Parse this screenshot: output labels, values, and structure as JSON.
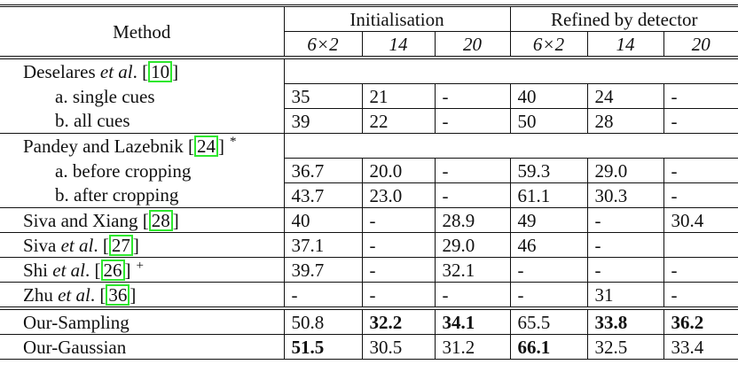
{
  "header": {
    "method": "Method",
    "groups": [
      "Initialisation",
      "Refined by detector"
    ],
    "subcols": [
      "6×2",
      "14",
      "20",
      "6×2",
      "14",
      "20"
    ]
  },
  "sections": [
    {
      "groups": [
        {
          "method": {
            "pre": "Deselares ",
            "italic": "et al",
            "post": ".",
            "cite": "10",
            "mark": ""
          },
          "rows": [
            {
              "label": "a. single cues",
              "values": [
                "35",
                "21",
                "-",
                "40",
                "24",
                "-"
              ],
              "bold": []
            },
            {
              "label": "b. all cues",
              "values": [
                "39",
                "22",
                "-",
                "50",
                "28",
                "-"
              ],
              "bold": []
            }
          ]
        },
        {
          "method": {
            "pre": "Pandey and Lazebnik ",
            "italic": "",
            "post": "",
            "cite": "24",
            "mark": "*"
          },
          "rows": [
            {
              "label": "a. before cropping",
              "values": [
                "36.7",
                "20.0",
                "-",
                "59.3",
                "29.0",
                "-"
              ],
              "bold": []
            },
            {
              "label": "b. after cropping",
              "values": [
                "43.7",
                "23.0",
                "-",
                "61.1",
                "30.3",
                "-"
              ],
              "bold": []
            }
          ]
        },
        {
          "method": {
            "pre": "Siva and Xiang ",
            "italic": "",
            "post": "",
            "cite": "28",
            "mark": ""
          },
          "values": [
            "40",
            "-",
            "28.9",
            "49",
            "-",
            "30.4"
          ],
          "bold": []
        },
        {
          "method": {
            "pre": "Siva ",
            "italic": "et al",
            "post": ".",
            "cite": "27",
            "mark": ""
          },
          "values": [
            "37.1",
            "-",
            "29.0",
            "46",
            "-",
            ""
          ],
          "bold": []
        },
        {
          "method": {
            "pre": "Shi ",
            "italic": "et al",
            "post": ".",
            "cite": "26",
            "mark": "+"
          },
          "values": [
            "39.7",
            "-",
            "32.1",
            "-",
            "-",
            "-"
          ],
          "bold": []
        },
        {
          "method": {
            "pre": "Zhu ",
            "italic": "et al",
            "post": ".",
            "cite": "36",
            "mark": ""
          },
          "values": [
            "-",
            "-",
            "-",
            "-",
            "31",
            "-"
          ],
          "bold": []
        }
      ]
    },
    {
      "groups": [
        {
          "method": {
            "pre": "Our-Sampling",
            "italic": "",
            "post": "",
            "cite": "",
            "mark": ""
          },
          "values": [
            "50.8",
            "32.2",
            "34.1",
            "65.5",
            "33.8",
            "36.2"
          ],
          "bold": [
            1,
            2,
            4,
            5
          ]
        },
        {
          "method": {
            "pre": "Our-Gaussian",
            "italic": "",
            "post": "",
            "cite": "",
            "mark": ""
          },
          "values": [
            "51.5",
            "30.5",
            "31.2",
            "66.1",
            "32.5",
            "33.4"
          ],
          "bold": [
            0,
            3
          ]
        }
      ]
    }
  ]
}
